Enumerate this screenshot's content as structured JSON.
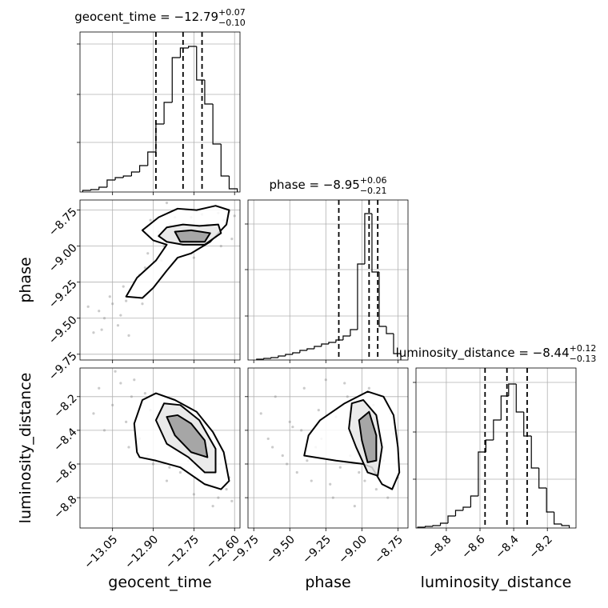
{
  "chart_data": [
    {
      "type": "histogram",
      "title": "geocent_time = −12.79",
      "title_upper": "+0.07",
      "title_lower": "−0.10",
      "bins": [
        -13.16,
        -13.13,
        -13.1,
        -13.07,
        -13.04,
        -13.01,
        -12.98,
        -12.95,
        -12.92,
        -12.89,
        -12.86,
        -12.83,
        -12.8,
        -12.77,
        -12.74,
        -12.71,
        -12.68,
        -12.65,
        -12.62,
        -12.59
      ],
      "values": [
        2,
        3,
        6,
        15,
        18,
        20,
        25,
        33,
        50,
        85,
        112,
        168,
        180,
        182,
        140,
        110,
        60,
        20,
        4
      ],
      "quantiles": [
        -12.89,
        -12.79,
        -12.72
      ],
      "xlim": [
        -13.17,
        -12.58
      ],
      "xticks": [
        -13.05,
        -12.9,
        -12.75,
        -12.6
      ],
      "ylim": [
        0,
        200
      ],
      "yticks": [
        62,
        122,
        185
      ],
      "xtick_labels": false,
      "ytick_labels": false,
      "grid": true,
      "color": "#000000"
    },
    {
      "type": "scatter",
      "ylabel": "phase",
      "x": [
        -13.1,
        -13.08,
        -13.05,
        -13.03,
        -13.12,
        -13.0,
        -12.98,
        -13.06,
        -13.02,
        -12.97,
        -12.95,
        -12.93,
        -13.14,
        -13.09,
        -12.92,
        -12.9,
        -12.88,
        -12.86,
        -12.84,
        -12.82,
        -12.8,
        -12.78,
        -12.76,
        -12.74,
        -12.72,
        -12.7,
        -12.68,
        -12.66,
        -12.64,
        -12.62,
        -12.6,
        -12.99,
        -12.94,
        -12.87,
        -12.75,
        -12.65,
        -12.61,
        -13.01,
        -12.91,
        -12.85
      ],
      "y": [
        -9.45,
        -9.5,
        -9.4,
        -9.55,
        -9.6,
        -9.38,
        -9.3,
        -9.35,
        -9.48,
        -9.25,
        -9.2,
        -9.15,
        -9.42,
        -9.58,
        -9.05,
        -8.95,
        -8.9,
        -9.0,
        -8.85,
        -8.8,
        -8.95,
        -8.75,
        -8.8,
        -9.02,
        -8.78,
        -8.85,
        -8.9,
        -8.77,
        -8.82,
        -8.76,
        -8.79,
        -9.62,
        -9.4,
        -9.1,
        -9.08,
        -9.0,
        -8.95,
        -9.28,
        -8.82,
        -8.7
      ],
      "contours": [
        {
          "x": [
            -13.0,
            -12.96,
            -12.89,
            -12.85,
            -12.9,
            -12.94,
            -12.88,
            -12.81,
            -12.74,
            -12.67,
            -12.62,
            -12.63,
            -12.69,
            -12.76,
            -12.81,
            -12.85,
            -12.9,
            -12.94
          ],
          "y": [
            -9.35,
            -9.22,
            -9.1,
            -8.99,
            -8.96,
            -8.89,
            -8.8,
            -8.74,
            -8.75,
            -8.72,
            -8.75,
            -8.85,
            -8.97,
            -9.05,
            -9.08,
            -9.17,
            -9.29,
            -9.36
          ]
        },
        {
          "x": [
            -12.88,
            -12.85,
            -12.79,
            -12.73,
            -12.66,
            -12.65,
            -12.71,
            -12.79,
            -12.85
          ],
          "y": [
            -8.93,
            -8.87,
            -8.85,
            -8.86,
            -8.85,
            -8.91,
            -8.99,
            -8.99,
            -8.97
          ]
        },
        {
          "x": [
            -12.82,
            -12.76,
            -12.69,
            -12.71,
            -12.8
          ],
          "y": [
            -8.9,
            -8.89,
            -8.91,
            -8.97,
            -8.97
          ]
        }
      ],
      "xlim": [
        -13.17,
        -12.58
      ],
      "xticks": [
        -13.05,
        -12.9,
        -12.75,
        -12.6
      ],
      "ylim": [
        -9.79,
        -8.68
      ],
      "yticks": [
        {
          "value": -8.75,
          "label": "−8.75"
        },
        {
          "value": -9.0,
          "label": "−9.00"
        },
        {
          "value": -9.25,
          "label": "−9.25"
        },
        {
          "value": -9.5,
          "label": "−9.50"
        },
        {
          "value": -9.75,
          "label": "−9.75"
        }
      ],
      "xtick_labels": false,
      "ytick_labels": true,
      "grid": true,
      "color": "#8c8c8c",
      "contour_color": "#000000",
      "contour_fills": [
        "#ffffff",
        "#e6e6e6",
        "#9a9a9a"
      ]
    },
    {
      "type": "histogram",
      "title": "phase = −8.95",
      "title_upper": "+0.06",
      "title_lower": "−0.21",
      "bins": [
        -9.73,
        -9.68,
        -9.63,
        -9.58,
        -9.53,
        -9.48,
        -9.43,
        -9.38,
        -9.33,
        -9.28,
        -9.23,
        -9.18,
        -9.13,
        -9.08,
        -9.03,
        -8.98,
        -8.93,
        -8.88,
        -8.83,
        -8.78,
        -8.73
      ],
      "values": [
        1,
        2,
        3,
        5,
        7,
        9,
        12,
        14,
        17,
        20,
        22,
        25,
        30,
        38,
        120,
        183,
        110,
        42,
        33,
        8
      ],
      "quantiles": [
        -9.16,
        -8.95,
        -8.89
      ],
      "xlim": [
        -9.79,
        -8.68
      ],
      "xticks": [
        -9.75,
        -9.5,
        -9.25,
        -9.0,
        -8.75
      ],
      "ylim": [
        0,
        200
      ],
      "yticks": [
        55,
        113,
        170
      ],
      "xtick_labels": false,
      "ytick_labels": false,
      "grid": true,
      "color": "#000000"
    },
    {
      "type": "scatter",
      "xlabel": "geocent_time",
      "ylabel": "luminosity_distance",
      "x": [
        -13.1,
        -13.05,
        -13.02,
        -13.0,
        -12.98,
        -12.95,
        -12.93,
        -12.9,
        -12.88,
        -12.85,
        -12.83,
        -12.8,
        -12.78,
        -12.75,
        -12.73,
        -12.7,
        -12.68,
        -12.65,
        -12.63,
        -12.61,
        -13.12,
        -13.08,
        -12.97,
        -12.92,
        -12.87,
        -12.82,
        -12.77,
        -12.72,
        -12.67,
        -12.62,
        -13.04,
        -12.99,
        -12.91,
        -12.84,
        -12.74,
        -12.66
      ],
      "y": [
        -8.15,
        -8.25,
        -8.12,
        -8.35,
        -8.2,
        -8.45,
        -8.18,
        -8.6,
        -8.3,
        -8.7,
        -8.22,
        -8.65,
        -8.4,
        -8.78,
        -8.5,
        -8.72,
        -8.85,
        -8.6,
        -8.75,
        -8.82,
        -8.3,
        -8.4,
        -8.1,
        -8.55,
        -8.4,
        -8.5,
        -8.58,
        -8.35,
        -8.45,
        -8.68,
        -8.05,
        -8.5,
        -8.28,
        -8.62,
        -8.62,
        -8.8
      ],
      "contours": [
        {
          "x": [
            -12.96,
            -12.97,
            -12.94,
            -12.89,
            -12.82,
            -12.74,
            -12.68,
            -12.64,
            -12.62,
            -12.65,
            -12.71,
            -12.8,
            -12.89,
            -12.95
          ],
          "y": [
            -8.53,
            -8.36,
            -8.22,
            -8.18,
            -8.22,
            -8.29,
            -8.41,
            -8.53,
            -8.7,
            -8.75,
            -8.72,
            -8.62,
            -8.58,
            -8.56
          ]
        },
        {
          "x": [
            -12.89,
            -12.86,
            -12.8,
            -12.73,
            -12.67,
            -12.67,
            -12.71,
            -12.77,
            -12.85
          ],
          "y": [
            -8.34,
            -8.24,
            -8.25,
            -8.34,
            -8.51,
            -8.65,
            -8.65,
            -8.56,
            -8.48
          ]
        },
        {
          "x": [
            -12.85,
            -12.81,
            -12.76,
            -12.71,
            -12.7,
            -12.76,
            -12.82
          ],
          "y": [
            -8.32,
            -8.31,
            -8.36,
            -8.46,
            -8.56,
            -8.53,
            -8.43
          ]
        }
      ],
      "xlim": [
        -13.17,
        -12.58
      ],
      "xticks": [
        {
          "value": -13.05,
          "label": "−13.05"
        },
        {
          "value": -12.9,
          "label": "−12.90"
        },
        {
          "value": -12.75,
          "label": "−12.75"
        },
        {
          "value": -12.6,
          "label": "−12.60"
        }
      ],
      "ylim": [
        -8.98,
        -8.03
      ],
      "yticks": [
        {
          "value": -8.2,
          "label": "−8.2"
        },
        {
          "value": -8.4,
          "label": "−8.4"
        },
        {
          "value": -8.6,
          "label": "−8.6"
        },
        {
          "value": -8.8,
          "label": "−8.8"
        }
      ],
      "xtick_labels": true,
      "ytick_labels": true,
      "grid": true,
      "color": "#8c8c8c",
      "contour_color": "#000000",
      "contour_fills": [
        "#ffffff",
        "#e6e6e6",
        "#9a9a9a"
      ]
    },
    {
      "type": "scatter",
      "xlabel": "phase",
      "x": [
        -9.7,
        -9.65,
        -9.6,
        -9.55,
        -9.5,
        -9.45,
        -9.4,
        -9.35,
        -9.3,
        -9.25,
        -9.2,
        -9.15,
        -9.1,
        -9.05,
        -9.0,
        -8.95,
        -8.9,
        -8.85,
        -8.8,
        -8.75,
        -9.62,
        -9.52,
        -9.42,
        -9.32,
        -9.22,
        -9.12,
        -9.02,
        -8.92,
        -8.82,
        -9.48,
        -9.38,
        -9.28,
        -9.18,
        -9.08,
        -8.98,
        -8.78
      ],
      "y": [
        -8.3,
        -8.45,
        -8.2,
        -8.55,
        -8.35,
        -8.65,
        -8.15,
        -8.7,
        -8.28,
        -8.1,
        -8.8,
        -8.62,
        -8.2,
        -8.85,
        -8.4,
        -8.15,
        -8.75,
        -8.58,
        -8.3,
        -8.68,
        -8.5,
        -8.6,
        -8.4,
        -8.5,
        -8.72,
        -8.12,
        -8.65,
        -8.25,
        -8.8,
        -8.38,
        -8.58,
        -8.45,
        -8.32,
        -8.55,
        -8.7,
        -8.42
      ],
      "contours": [
        {
          "x": [
            -9.4,
            -9.37,
            -9.29,
            -9.12,
            -8.96,
            -8.85,
            -8.78,
            -8.75,
            -8.74,
            -8.79,
            -8.86,
            -8.93,
            -8.99,
            -9.18
          ],
          "y": [
            -8.55,
            -8.43,
            -8.34,
            -8.24,
            -8.17,
            -8.2,
            -8.31,
            -8.5,
            -8.65,
            -8.75,
            -8.72,
            -8.62,
            -8.6,
            -8.58
          ]
        },
        {
          "x": [
            -9.09,
            -9.07,
            -8.99,
            -8.9,
            -8.86,
            -8.89,
            -8.96,
            -9.04
          ],
          "y": [
            -8.39,
            -8.24,
            -8.22,
            -8.31,
            -8.5,
            -8.67,
            -8.65,
            -8.5
          ]
        },
        {
          "x": [
            -9.02,
            -8.95,
            -8.9,
            -8.9,
            -8.96,
            -9.0
          ],
          "y": [
            -8.34,
            -8.29,
            -8.43,
            -8.58,
            -8.59,
            -8.46
          ]
        }
      ],
      "xlim": [
        -9.79,
        -8.68
      ],
      "xticks": [
        {
          "value": -9.75,
          "label": "−9.75"
        },
        {
          "value": -9.5,
          "label": "−9.50"
        },
        {
          "value": -9.25,
          "label": "−9.25"
        },
        {
          "value": -9.0,
          "label": "−9.00"
        },
        {
          "value": -8.75,
          "label": "−8.75"
        }
      ],
      "ylim": [
        -8.98,
        -8.03
      ],
      "yticks": [
        -8.2,
        -8.4,
        -8.6,
        -8.8
      ],
      "xtick_labels": true,
      "ytick_labels": false,
      "grid": true,
      "color": "#8c8c8c",
      "contour_color": "#000000",
      "contour_fills": [
        "#ffffff",
        "#e6e6e6",
        "#9a9a9a"
      ]
    },
    {
      "type": "histogram",
      "xlabel": "luminosity_distance",
      "title": "luminosity_distance = −8.44",
      "title_upper": "+0.12",
      "title_lower": "−0.13",
      "bins": [
        -8.97,
        -8.925,
        -8.88,
        -8.835,
        -8.79,
        -8.745,
        -8.7,
        -8.655,
        -8.61,
        -8.565,
        -8.52,
        -8.475,
        -8.43,
        -8.385,
        -8.34,
        -8.295,
        -8.25,
        -8.205,
        -8.16,
        -8.115,
        -8.07
      ],
      "values": [
        1,
        2,
        3,
        6,
        15,
        22,
        26,
        40,
        95,
        110,
        135,
        165,
        180,
        145,
        115,
        75,
        50,
        20,
        5,
        3
      ],
      "quantiles": [
        -8.57,
        -8.44,
        -8.32
      ],
      "xlim": [
        -8.98,
        -8.03
      ],
      "xticks": [
        {
          "value": -8.8,
          "label": "−8.8"
        },
        {
          "value": -8.6,
          "label": "−8.6"
        },
        {
          "value": -8.4,
          "label": "−8.4"
        },
        {
          "value": -8.2,
          "label": "−8.2"
        }
      ],
      "ylim": [
        0,
        200
      ],
      "yticks": [
        61,
        120,
        182
      ],
      "xtick_labels": true,
      "ytick_labels": false,
      "grid": true,
      "color": "#000000"
    }
  ]
}
